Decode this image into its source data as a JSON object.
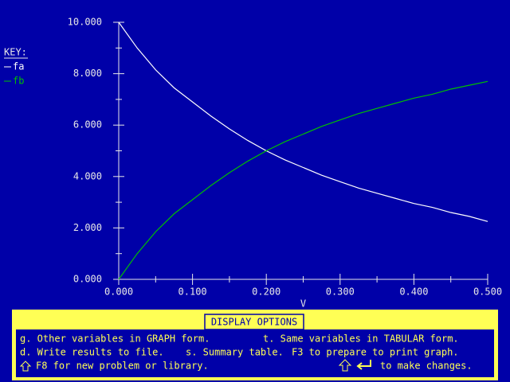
{
  "chart_data": {
    "type": "line",
    "key_title": "KEY:",
    "xlabel": "V",
    "x": [
      0,
      0.025,
      0.05,
      0.075,
      0.1,
      0.125,
      0.15,
      0.175,
      0.2,
      0.225,
      0.25,
      0.275,
      0.3,
      0.325,
      0.35,
      0.375,
      0.4,
      0.425,
      0.45,
      0.475,
      0.5
    ],
    "series": [
      {
        "name": "fa",
        "color": "#ffffff",
        "values": [
          10,
          9.0,
          8.15,
          7.45,
          6.9,
          6.35,
          5.85,
          5.4,
          5.0,
          4.65,
          4.35,
          4.05,
          3.8,
          3.55,
          3.35,
          3.15,
          2.95,
          2.8,
          2.6,
          2.45,
          2.25
        ]
      },
      {
        "name": "fb",
        "color": "#00c000",
        "values": [
          0,
          1.0,
          1.85,
          2.55,
          3.1,
          3.65,
          4.15,
          4.6,
          5.0,
          5.35,
          5.65,
          5.95,
          6.2,
          6.45,
          6.65,
          6.85,
          7.05,
          7.2,
          7.4,
          7.55,
          7.7
        ]
      }
    ],
    "xlim": [
      0,
      0.5
    ],
    "ylim": [
      0,
      10
    ],
    "xticks": [
      {
        "value": 0,
        "label": "0.000"
      },
      {
        "value": 0.1,
        "label": "0.100"
      },
      {
        "value": 0.2,
        "label": "0.200"
      },
      {
        "value": 0.3,
        "label": "0.300"
      },
      {
        "value": 0.4,
        "label": "0.400"
      },
      {
        "value": 0.5,
        "label": "0.500"
      }
    ],
    "xminorticks": [
      0.05,
      0.15,
      0.25,
      0.35,
      0.45
    ],
    "yticks": [
      {
        "value": 0,
        "label": "0.000"
      },
      {
        "value": 2,
        "label": "2.000"
      },
      {
        "value": 4,
        "label": "4.000"
      },
      {
        "value": 6,
        "label": "6.000"
      },
      {
        "value": 8,
        "label": "8.000"
      },
      {
        "value": 10,
        "label": "10.000"
      }
    ],
    "yminorticks": [
      1,
      3,
      5,
      7,
      9
    ]
  },
  "menu": {
    "title": "DISPLAY OPTIONS",
    "line1": [
      "g. Other variables in GRAPH form.",
      "t. Same variables in TABULAR form."
    ],
    "line2": [
      "d. Write results to file.",
      "s. Summary table.",
      "F3 to prepare to print graph."
    ],
    "line3": [
      "F8 for new problem or library.",
      "to make changes."
    ]
  }
}
